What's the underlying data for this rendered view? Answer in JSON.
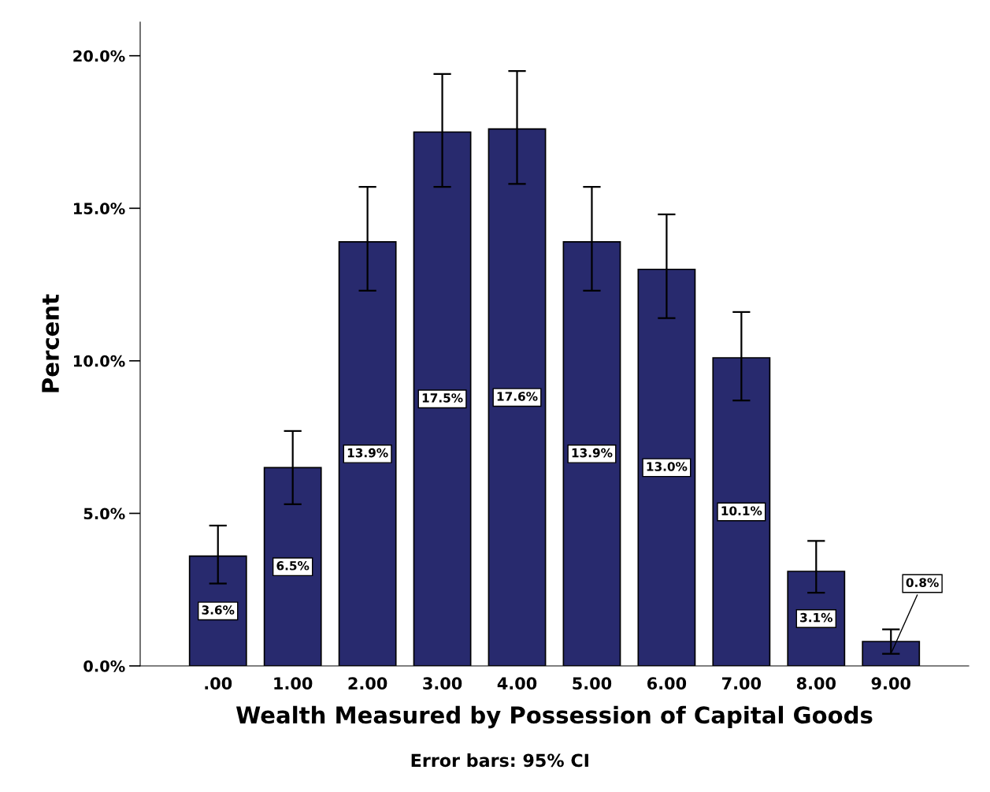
{
  "chart_data": {
    "type": "bar",
    "xlabel": "Wealth Measured by Possession of Capital Goods",
    "ylabel": "Percent",
    "categories": [
      ".00",
      "1.00",
      "2.00",
      "3.00",
      "4.00",
      "5.00",
      "6.00",
      "7.00",
      "8.00",
      "9.00"
    ],
    "values": [
      3.6,
      6.5,
      13.9,
      17.5,
      17.6,
      13.9,
      13.0,
      10.1,
      3.1,
      0.8
    ],
    "value_labels": [
      "3.6%",
      "6.5%",
      "13.9%",
      "17.5%",
      "17.6%",
      "13.9%",
      "13.0%",
      "10.1%",
      "3.1%",
      "0.8%"
    ],
    "errors": [
      [
        2.7,
        4.6
      ],
      [
        5.3,
        7.7
      ],
      [
        12.3,
        15.7
      ],
      [
        15.7,
        19.4
      ],
      [
        15.8,
        19.5
      ],
      [
        12.3,
        15.7
      ],
      [
        11.4,
        14.8
      ],
      [
        8.7,
        11.6
      ],
      [
        2.4,
        4.1
      ],
      [
        0.4,
        1.2
      ]
    ],
    "color": "#282a6e",
    "ylim": [
      0,
      21.1
    ],
    "yticks": [
      {
        "value": 0,
        "label": "0.0%"
      },
      {
        "value": 5,
        "label": "5.0%"
      },
      {
        "value": 10,
        "label": "10.0%"
      },
      {
        "value": 15,
        "label": "15.0%"
      },
      {
        "value": 20,
        "label": "20.0%"
      }
    ],
    "grid": false,
    "annotations": [
      "Error bars: 95% CI"
    ]
  }
}
